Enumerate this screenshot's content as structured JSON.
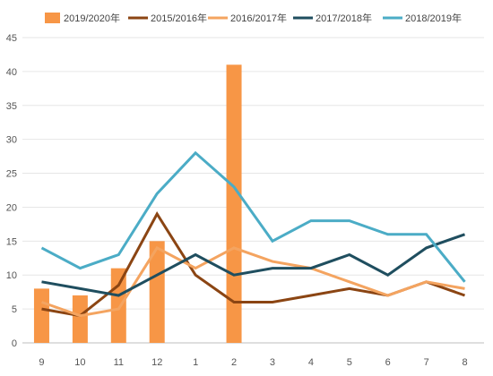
{
  "chart_data": {
    "type": "bar+line",
    "categories": [
      "9",
      "10",
      "11",
      "12",
      "1",
      "2",
      "3",
      "4",
      "5",
      "6",
      "7",
      "8"
    ],
    "ylim": [
      0,
      45
    ],
    "yticks": [
      0,
      5,
      10,
      15,
      20,
      25,
      30,
      35,
      40,
      45
    ],
    "grid": true,
    "legend_position": "top",
    "bar_series": {
      "name": "2019/2020年",
      "color": "#F79646",
      "values": [
        8,
        7,
        11,
        15,
        null,
        41,
        null,
        null,
        null,
        null,
        null,
        null
      ]
    },
    "line_series": [
      {
        "name": "2015/2016年",
        "color": "#8B4513",
        "values": [
          5,
          4,
          8.5,
          19,
          10,
          6,
          6,
          7,
          8,
          7,
          9,
          7
        ]
      },
      {
        "name": "2016/2017年",
        "color": "#F4A460",
        "values": [
          6,
          4,
          5,
          14,
          11,
          14,
          12,
          11,
          9,
          7,
          9,
          8
        ]
      },
      {
        "name": "2017/2018年",
        "color": "#1F4E5F",
        "values": [
          9,
          8,
          7,
          10,
          13,
          10,
          11,
          11,
          13,
          10,
          14,
          16
        ]
      },
      {
        "name": "2018/2019年",
        "color": "#4BACC6",
        "values": [
          14,
          11,
          13,
          22,
          28,
          23,
          15,
          18,
          18,
          16,
          16,
          9
        ]
      }
    ]
  }
}
